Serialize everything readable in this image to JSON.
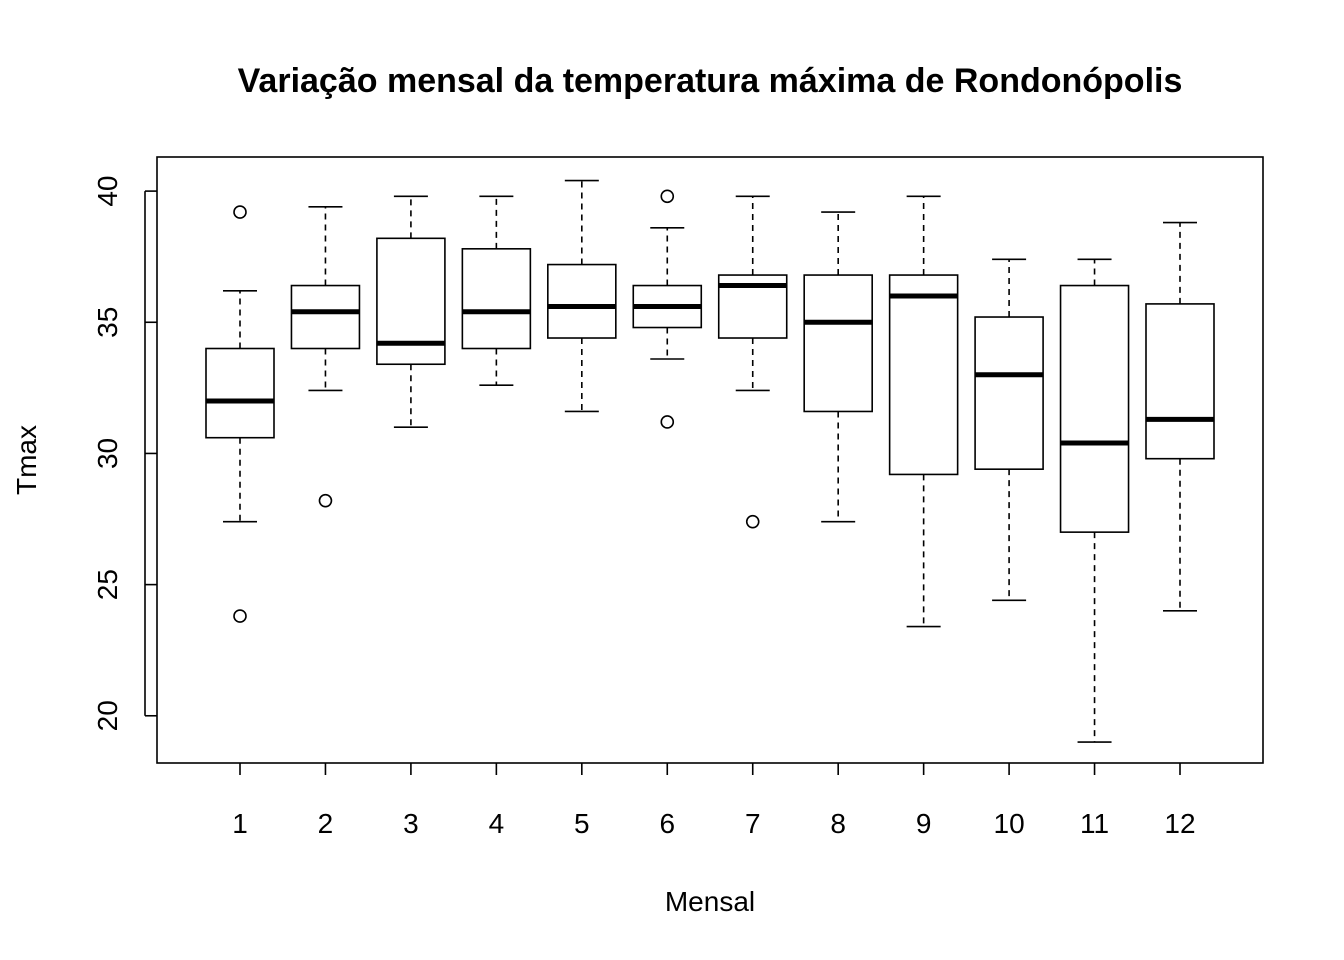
{
  "chart_data": {
    "type": "boxplot",
    "title": "Variação mensal da temperatura máxima de Rondonópolis",
    "xlabel": "Mensal",
    "ylabel": "Tmax",
    "categories": [
      "1",
      "2",
      "3",
      "4",
      "5",
      "6",
      "7",
      "8",
      "9",
      "10",
      "11",
      "12"
    ],
    "ylim": [
      18.2,
      41.3
    ],
    "yticks": [
      "20",
      "25",
      "30",
      "35",
      "40"
    ],
    "grid": false,
    "legend": "none",
    "boxes": [
      {
        "whisker_low": 27.4,
        "q1": 30.6,
        "median": 32.0,
        "q3": 34.0,
        "whisker_high": 36.2,
        "outliers": [
          39.2,
          23.8
        ]
      },
      {
        "whisker_low": 32.4,
        "q1": 34.0,
        "median": 35.4,
        "q3": 36.4,
        "whisker_high": 39.4,
        "outliers": [
          28.2
        ]
      },
      {
        "whisker_low": 31.0,
        "q1": 33.4,
        "median": 34.2,
        "q3": 38.2,
        "whisker_high": 39.8,
        "outliers": []
      },
      {
        "whisker_low": 32.6,
        "q1": 34.0,
        "median": 35.4,
        "q3": 37.8,
        "whisker_high": 39.8,
        "outliers": []
      },
      {
        "whisker_low": 31.6,
        "q1": 34.4,
        "median": 35.6,
        "q3": 37.2,
        "whisker_high": 40.4,
        "outliers": []
      },
      {
        "whisker_low": 33.6,
        "q1": 34.8,
        "median": 35.6,
        "q3": 36.4,
        "whisker_high": 38.6,
        "outliers": [
          39.8,
          31.2
        ]
      },
      {
        "whisker_low": 32.4,
        "q1": 34.4,
        "median": 36.4,
        "q3": 36.8,
        "whisker_high": 39.8,
        "outliers": [
          27.4
        ]
      },
      {
        "whisker_low": 27.4,
        "q1": 31.6,
        "median": 35.0,
        "q3": 36.8,
        "whisker_high": 39.2,
        "outliers": []
      },
      {
        "whisker_low": 23.4,
        "q1": 29.2,
        "median": 36.0,
        "q3": 36.8,
        "whisker_high": 39.8,
        "outliers": []
      },
      {
        "whisker_low": 24.4,
        "q1": 29.4,
        "median": 33.0,
        "q3": 35.2,
        "whisker_high": 37.4,
        "outliers": []
      },
      {
        "whisker_low": 19.0,
        "q1": 27.0,
        "median": 30.4,
        "q3": 36.4,
        "whisker_high": 37.4,
        "outliers": []
      },
      {
        "whisker_low": 24.0,
        "q1": 29.8,
        "median": 31.3,
        "q3": 35.7,
        "whisker_high": 38.8,
        "outliers": []
      }
    ]
  }
}
